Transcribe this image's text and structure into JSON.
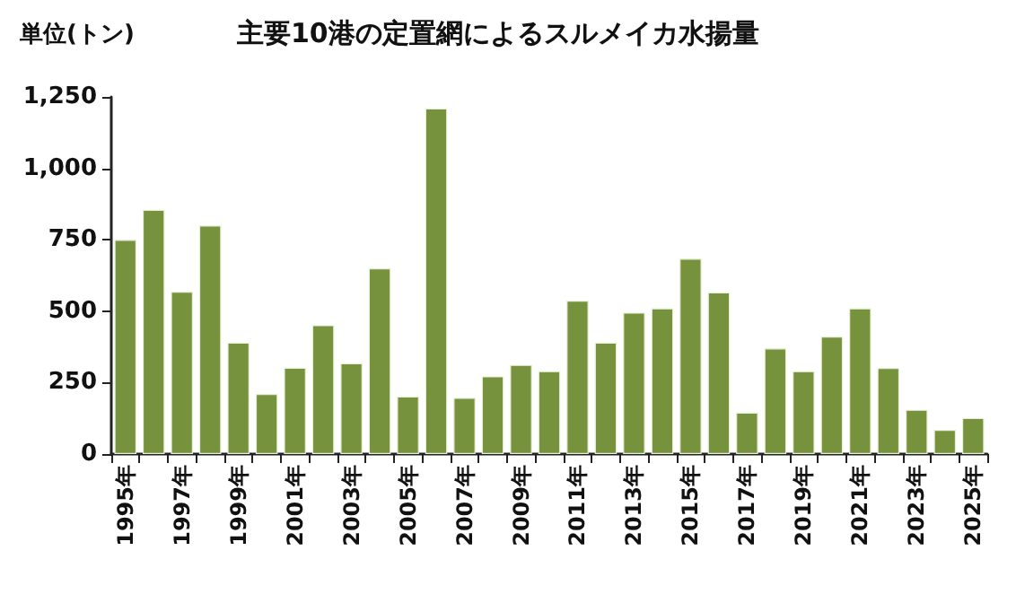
{
  "chart_data": {
    "type": "bar",
    "title": "主要10港の定置網によるスルメイカ水揚量",
    "ylabel": "単位(トン)",
    "categories": [
      "1995年",
      null,
      "1997年",
      null,
      "1999年",
      null,
      "2001年",
      null,
      "2003年",
      null,
      "2005年",
      null,
      "2007年",
      null,
      "2009年",
      null,
      "2011年",
      null,
      "2013年",
      null,
      "2015年",
      null,
      "2017年",
      null,
      "2019年",
      null,
      "2021年",
      null,
      "2023年",
      null,
      "2025年"
    ],
    "values": [
      750,
      855,
      568,
      800,
      390,
      210,
      302,
      451,
      318,
      650,
      202,
      1210,
      197,
      272,
      312,
      290,
      537,
      390,
      495,
      510,
      684,
      566,
      145,
      370,
      290,
      411,
      510,
      301,
      155,
      85,
      126
    ],
    "color": "#76923c",
    "ylim": [
      0,
      1250
    ],
    "yticks": [
      0,
      250,
      500,
      750,
      {
        "value": 1000,
        "label": "1,000"
      },
      {
        "value": 1250,
        "label": "1,250"
      }
    ],
    "grid": false
  }
}
